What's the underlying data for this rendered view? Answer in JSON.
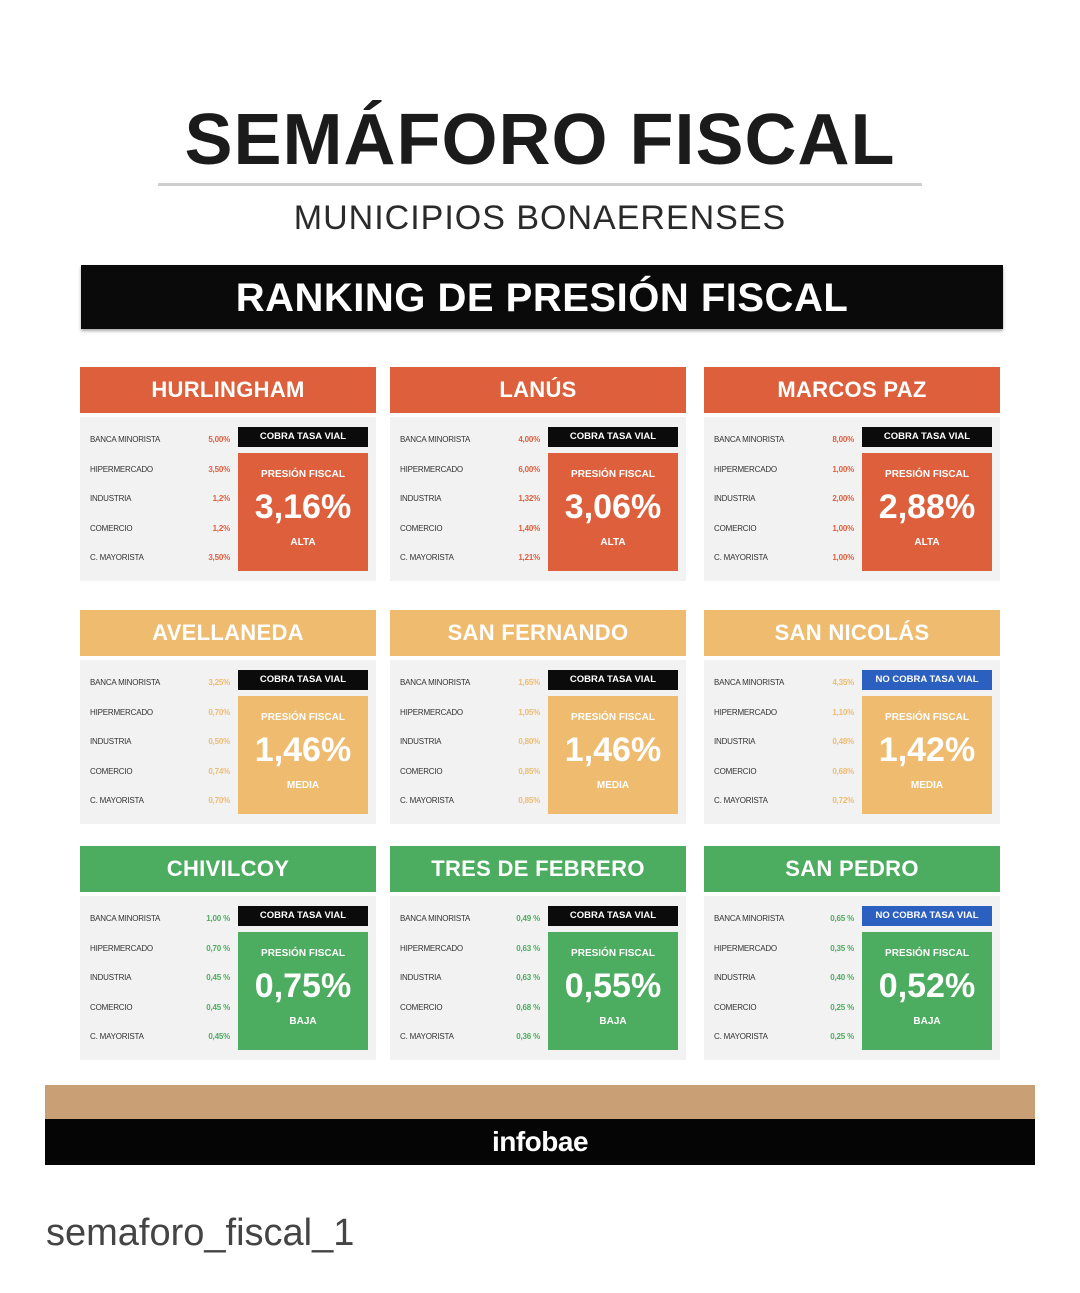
{
  "header": {
    "title": "SEMÁFORO FISCAL",
    "subtitle": "MUNICIPIOS BONAERENSES",
    "ranking_title": "RANKING DE PRESIÓN FISCAL"
  },
  "colors": {
    "alta": "#dd5f3c",
    "media": "#eebb6f",
    "baja": "#4cac5f",
    "cobra": "#0b0b0b",
    "no_cobra": "#2b5fc0"
  },
  "rate_labels": [
    "BANCA MINORISTA",
    "HIPERMERCADO",
    "INDUSTRIA",
    "COMERCIO",
    "C. MAYORISTA"
  ],
  "pressure_label": "PRESIÓN FISCAL",
  "municipalities": [
    {
      "name": "HURLINGHAM",
      "rates": [
        "5,00%",
        "3,50%",
        "1,2%",
        "1,2%",
        "3,50%"
      ],
      "tasa_vial": "COBRA TASA VIAL",
      "cobra": true,
      "presion": "3,16%",
      "nivel": "ALTA"
    },
    {
      "name": "LANÚS",
      "rates": [
        "4,00%",
        "6,00%",
        "1,32%",
        "1,40%",
        "1,21%"
      ],
      "tasa_vial": "COBRA TASA VIAL",
      "cobra": true,
      "presion": "3,06%",
      "nivel": "ALTA"
    },
    {
      "name": "MARCOS PAZ",
      "rates": [
        "8,00%",
        "1,00%",
        "2,00%",
        "1,00%",
        "1,00%"
      ],
      "tasa_vial": "COBRA TASA VIAL",
      "cobra": true,
      "presion": "2,88%",
      "nivel": "ALTA"
    },
    {
      "name": "AVELLANEDA",
      "rates": [
        "3,25%",
        "0,70%",
        "0,50%",
        "0,74%",
        "0,70%"
      ],
      "tasa_vial": "COBRA TASA VIAL",
      "cobra": true,
      "presion": "1,46%",
      "nivel": "MEDIA"
    },
    {
      "name": "SAN FERNANDO",
      "rates": [
        "1,65%",
        "1,05%",
        "0,80%",
        "0,85%",
        "0,85%"
      ],
      "tasa_vial": "COBRA TASA VIAL",
      "cobra": true,
      "presion": "1,46%",
      "nivel": "MEDIA"
    },
    {
      "name": "SAN NICOLÁS",
      "rates": [
        "4,35%",
        "1,10%",
        "0,48%",
        "0,68%",
        "0,72%"
      ],
      "tasa_vial": "NO COBRA TASA VIAL",
      "cobra": false,
      "presion": "1,42%",
      "nivel": "MEDIA"
    },
    {
      "name": "CHIVILCOY",
      "rates": [
        "1,00 %",
        "0,70 %",
        "0,45 %",
        "0,45 %",
        "0,45%"
      ],
      "tasa_vial": "COBRA TASA VIAL",
      "cobra": true,
      "presion": "0,75%",
      "nivel": "BAJA"
    },
    {
      "name": "TRES DE FEBRERO",
      "rates": [
        "0,49 %",
        "0,63 %",
        "0,63 %",
        "0,68 %",
        "0,36 %"
      ],
      "tasa_vial": "COBRA TASA VIAL",
      "cobra": true,
      "presion": "0,55%",
      "nivel": "BAJA"
    },
    {
      "name": "SAN PEDRO",
      "rates": [
        "0,65 %",
        "0,35 %",
        "0,40 %",
        "0,25 %",
        "0,25 %"
      ],
      "tasa_vial": "NO COBRA TASA VIAL",
      "cobra": false,
      "presion": "0,52%",
      "nivel": "BAJA"
    }
  ],
  "footer": {
    "brand": "infobae"
  },
  "caption": "semaforo_fiscal_1"
}
